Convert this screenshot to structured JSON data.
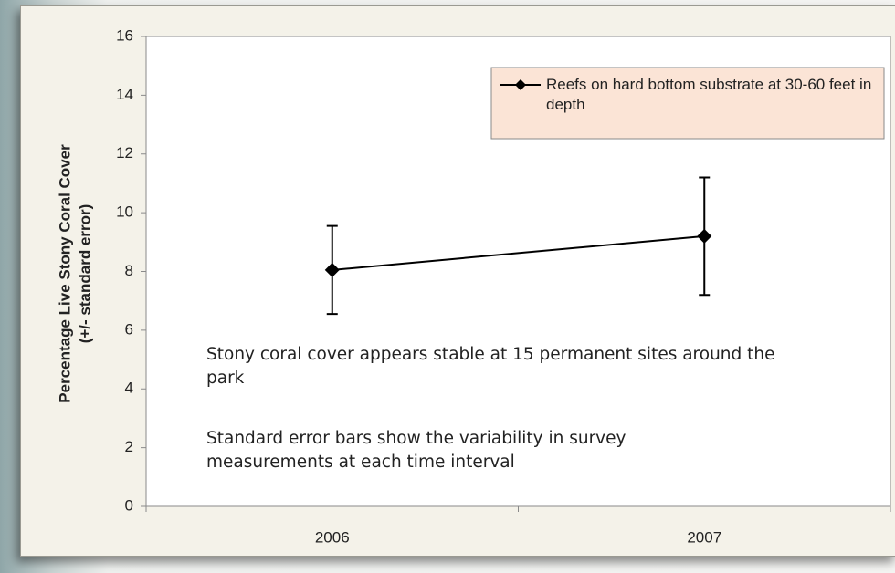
{
  "chart_data": {
    "type": "line",
    "y_label": [
      "Percentage Live Stony Coral Cover",
      "(+/- standard error)"
    ],
    "categories": [
      "2006",
      "2007"
    ],
    "series": [
      {
        "name": "Reefs on hard bottom substrate at 30-60 feet in depth",
        "color": "#000000",
        "values": [
          8.05,
          9.2
        ],
        "errors": [
          1.5,
          2.0
        ]
      }
    ],
    "ylim": [
      0,
      16
    ],
    "yticks": [
      0,
      2,
      4,
      6,
      8,
      10,
      12,
      14,
      16
    ],
    "grid": false,
    "legend": "top-right",
    "annotations": [
      "Stony coral cover appears stable at 15 permanent sites around the park",
      "Standard error bars show the variability in survey measurements at each time interval"
    ]
  }
}
